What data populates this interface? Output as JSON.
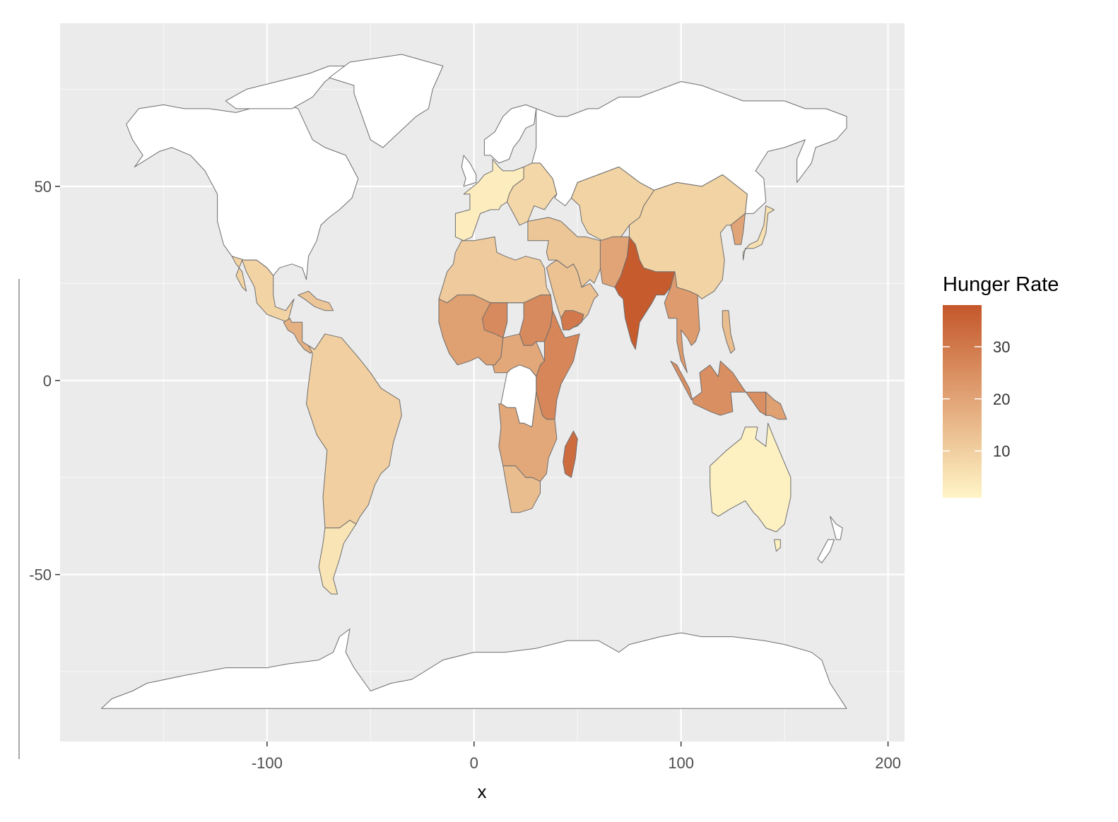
{
  "chart_data": {
    "type": "choropleth-map",
    "title": "",
    "xlabel": "x",
    "ylabel": "",
    "xlim": [
      -200,
      208
    ],
    "ylim": [
      -93,
      92
    ],
    "x_ticks": [
      -100,
      0,
      100,
      200
    ],
    "x_tick_labels": [
      "-100",
      "0",
      "100",
      "200"
    ],
    "y_ticks": [
      -50,
      0,
      50
    ],
    "y_tick_labels": [
      "-50",
      "0",
      "50"
    ],
    "panel_background": "#ebebeb",
    "grid_color": "#ffffff",
    "no_data_fill": "#ffffff",
    "border_color": "#6e6e6e",
    "legend": {
      "title": "Hunger Rate",
      "position": "right",
      "range": [
        1,
        38
      ],
      "ticks": [
        10,
        20,
        30
      ],
      "tick_labels": [
        "10",
        "20",
        "30"
      ],
      "low_color": "#fff5c6",
      "high_color": "#c4572a"
    },
    "regions": [
      {
        "name": "North America",
        "value": null
      },
      {
        "name": "Greenland",
        "value": null
      },
      {
        "name": "Mexico",
        "value": 9
      },
      {
        "name": "Central America",
        "value": 17
      },
      {
        "name": "Caribbean",
        "value": 12
      },
      {
        "name": "South America",
        "value": 10
      },
      {
        "name": "Argentina",
        "value": 5
      },
      {
        "name": "Western Europe",
        "value": 3
      },
      {
        "name": "Eastern Europe",
        "value": 8
      },
      {
        "name": "Russia",
        "value": null
      },
      {
        "name": "North Africa",
        "value": 11
      },
      {
        "name": "West Africa",
        "value": 21
      },
      {
        "name": "Sahel",
        "value": 26
      },
      {
        "name": "East Africa",
        "value": 27
      },
      {
        "name": "Central Africa",
        "value": 19
      },
      {
        "name": "DR Congo",
        "value": null
      },
      {
        "name": "Southern Africa",
        "value": 19
      },
      {
        "name": "South Africa",
        "value": 14
      },
      {
        "name": "Madagascar",
        "value": 33
      },
      {
        "name": "Middle East",
        "value": 12
      },
      {
        "name": "Yemen",
        "value": 30
      },
      {
        "name": "Central Asia",
        "value": 9
      },
      {
        "name": "India",
        "value": 37
      },
      {
        "name": "China",
        "value": 9
      },
      {
        "name": "Southeast Asia",
        "value": 22
      },
      {
        "name": "Korea",
        "value": 20
      },
      {
        "name": "Japan",
        "value": 6
      },
      {
        "name": "Indonesia",
        "value": 25
      },
      {
        "name": "Australia",
        "value": 2
      },
      {
        "name": "New Zealand",
        "value": null
      },
      {
        "name": "Antarctica",
        "value": null
      }
    ]
  }
}
